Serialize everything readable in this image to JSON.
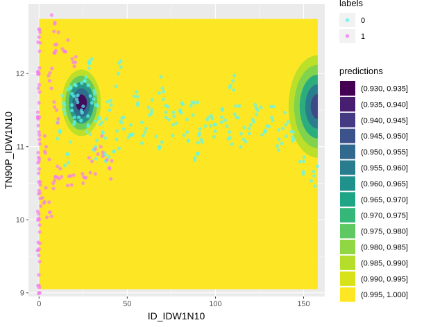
{
  "chart_data": {
    "type": "scatter",
    "xlabel": "ID_IDW1N10",
    "ylabel": "TN90P_IDW1N10",
    "xlim": [
      -6,
      162
    ],
    "ylim": [
      8.95,
      12.95
    ],
    "xticks": [
      0,
      50,
      100,
      150
    ],
    "xtick_labels": [
      "0",
      "50",
      "100",
      "150"
    ],
    "yticks": [
      9,
      10,
      11,
      12
    ],
    "ytick_labels": [
      "9",
      "10",
      "11",
      "12"
    ],
    "grid": true,
    "background": "#ebebeb",
    "fill_region": {
      "x": [
        0,
        158
      ],
      "y": [
        9.05,
        12.75
      ],
      "color": "#fde725",
      "level": "(0.995, 1.000]"
    },
    "contour_hotspots": [
      {
        "x": 24,
        "y": 11.6,
        "levels_from_center": [
          "#440154",
          "#31688e",
          "#21918c",
          "#5ec962",
          "#b5de2b"
        ]
      },
      {
        "x": 160,
        "y": 11.55,
        "levels_from_center": [
          "#414487",
          "#2a788e",
          "#22a884",
          "#7ad151",
          "#b5de2b"
        ]
      }
    ],
    "labels_legend": {
      "title": "labels",
      "items": [
        {
          "label": "0",
          "color": "#5cf5f2"
        },
        {
          "label": "1",
          "color": "#f47ef0"
        }
      ]
    },
    "predictions_legend": {
      "title": "predictions",
      "items": [
        {
          "label": "(0.930, 0.935]",
          "color": "#440154"
        },
        {
          "label": "(0.935, 0.940]",
          "color": "#481f70"
        },
        {
          "label": "(0.940, 0.945]",
          "color": "#443983"
        },
        {
          "label": "(0.945, 0.950]",
          "color": "#3b528b"
        },
        {
          "label": "(0.950, 0.955]",
          "color": "#31688e"
        },
        {
          "label": "(0.955, 0.960]",
          "color": "#287c8e"
        },
        {
          "label": "(0.960, 0.965]",
          "color": "#21918c"
        },
        {
          "label": "(0.965, 0.970]",
          "color": "#20a486"
        },
        {
          "label": "(0.970, 0.975]",
          "color": "#35b779"
        },
        {
          "label": "(0.975, 0.980]",
          "color": "#5ec962"
        },
        {
          "label": "(0.980, 0.985]",
          "color": "#90d743"
        },
        {
          "label": "(0.985, 0.990]",
          "color": "#b5de2b"
        },
        {
          "label": "(0.990, 0.995]",
          "color": "#d8e219"
        },
        {
          "label": "(0.995, 1.000]",
          "color": "#fde725"
        }
      ]
    },
    "series": [
      {
        "name": "0",
        "color": "#5cf5f2",
        "description": "dense band from x≈15 to x≈158 centered near y≈11.1–11.5, spreading 10.6–12.3",
        "points": [
          [
            12,
            11.2
          ],
          [
            14,
            11.6
          ],
          [
            16,
            10.9
          ],
          [
            18,
            11.8
          ],
          [
            20,
            11.4
          ],
          [
            22,
            11.7
          ],
          [
            24,
            11.5
          ],
          [
            26,
            11.9
          ],
          [
            28,
            11.3
          ],
          [
            30,
            11.6
          ],
          [
            32,
            11.0
          ],
          [
            34,
            11.4
          ],
          [
            36,
            11.2
          ],
          [
            40,
            11.5
          ],
          [
            44,
            11.1
          ],
          [
            48,
            11.4
          ],
          [
            52,
            11.3
          ],
          [
            56,
            11.6
          ],
          [
            60,
            11.2
          ],
          [
            64,
            11.5
          ],
          [
            68,
            11.0
          ],
          [
            72,
            11.4
          ],
          [
            76,
            11.3
          ],
          [
            80,
            11.5
          ],
          [
            84,
            11.2
          ],
          [
            88,
            11.6
          ],
          [
            92,
            11.1
          ],
          [
            96,
            11.4
          ],
          [
            100,
            11.3
          ],
          [
            104,
            11.5
          ],
          [
            108,
            11.2
          ],
          [
            112,
            11.4
          ],
          [
            116,
            11.1
          ],
          [
            120,
            11.3
          ],
          [
            124,
            11.5
          ],
          [
            128,
            11.2
          ],
          [
            132,
            11.4
          ],
          [
            136,
            11.1
          ],
          [
            140,
            11.3
          ],
          [
            144,
            11.2
          ],
          [
            150,
            10.8
          ],
          [
            156,
            10.6
          ],
          [
            45,
            12.0
          ],
          [
            70,
            11.8
          ],
          [
            110,
            11.9
          ],
          [
            90,
            10.9
          ],
          [
            30,
            12.2
          ],
          [
            38,
            10.8
          ]
        ]
      },
      {
        "name": "1",
        "color": "#f47ef0",
        "description": "vertical stripe at x≈0 spanning y≈9.1–12.6 plus a scatter cloud for x<40",
        "points": [
          [
            0,
            9.1
          ],
          [
            0,
            9.6
          ],
          [
            0,
            10.0
          ],
          [
            0,
            10.4
          ],
          [
            0,
            10.8
          ],
          [
            0,
            11.2
          ],
          [
            0,
            11.6
          ],
          [
            0,
            12.0
          ],
          [
            0,
            12.5
          ],
          [
            2,
            10.3
          ],
          [
            4,
            11.0
          ],
          [
            6,
            11.9
          ],
          [
            8,
            10.5
          ],
          [
            9,
            12.7
          ],
          [
            10,
            12.4
          ],
          [
            12,
            10.7
          ],
          [
            15,
            12.3
          ],
          [
            18,
            10.6
          ],
          [
            20,
            12.1
          ],
          [
            25,
            10.5
          ],
          [
            30,
            10.8
          ],
          [
            35,
            11.0
          ],
          [
            40,
            10.7
          ],
          [
            10,
            11.5
          ],
          [
            6,
            10.1
          ]
        ]
      }
    ]
  }
}
